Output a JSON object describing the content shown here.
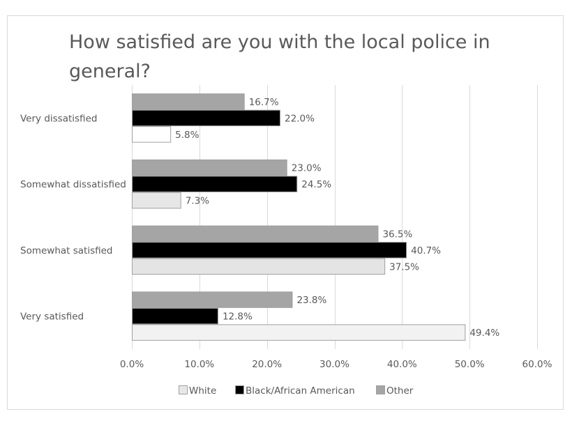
{
  "chart_data": {
    "type": "bar",
    "orientation": "horizontal",
    "title": "How satisfied are you with the local police in general?",
    "title_lines": [
      "How satisfied are you with the local police in",
      "general?"
    ],
    "categories": [
      "Very dissatisfied",
      "Somewhat dissatisfied",
      "Somewhat satisfied",
      "Very satisfied"
    ],
    "series": [
      {
        "name": "White",
        "color": "#e7e7e7",
        "point_colors": [
          "#ffffff",
          "#e6e6e6",
          "#e4e4e4",
          "#f2f2f2"
        ],
        "values": [
          5.8,
          7.3,
          37.5,
          49.4
        ]
      },
      {
        "name": "Black/African American",
        "color": "#000000",
        "values": [
          22.0,
          24.5,
          40.7,
          12.8
        ]
      },
      {
        "name": "Other",
        "color": "#a5a5a5",
        "values": [
          16.7,
          23.0,
          36.5,
          23.8
        ]
      }
    ],
    "data_labels": {
      "White": [
        "5.8%",
        "7.3%",
        "37.5%",
        "49.4%"
      ],
      "Black/African American": [
        "22.0%",
        "24.5%",
        "40.7%",
        "12.8%"
      ],
      "Other": [
        "16.7%",
        "23.0%",
        "36.5%",
        "23.8%"
      ]
    },
    "xlim": [
      0,
      60
    ],
    "xticks": [
      0,
      10,
      20,
      30,
      40,
      50,
      60
    ],
    "xtick_labels": [
      "0.0%",
      "10.0%",
      "20.0%",
      "30.0%",
      "40.0%",
      "50.0%",
      "60.0%"
    ],
    "xlabel": "",
    "ylabel": "",
    "grid": "vertical",
    "legend": {
      "position": "bottom",
      "entries": [
        "White",
        "Black/African American",
        "Other"
      ]
    },
    "bar_border_color": "#a0a0a0"
  }
}
